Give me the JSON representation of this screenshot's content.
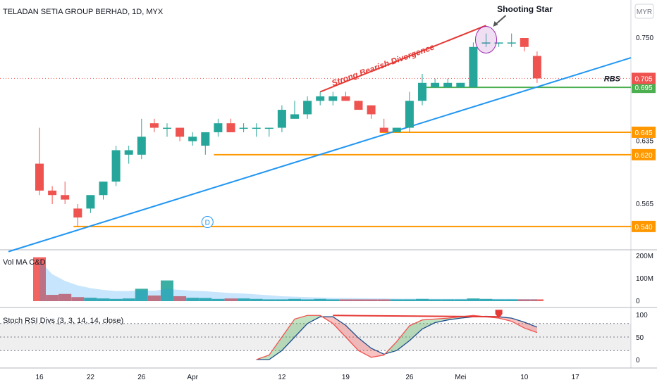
{
  "title": "TELADAN SETIA GROUP BERHAD, 1D, MYX",
  "currency_badge": "MYR",
  "colors": {
    "up": "#26a69a",
    "down": "#ef5350",
    "trendline": "#2196f3",
    "level": "#ff9800",
    "rbs": "#4caf50",
    "divergence": "#e53935",
    "rsi_k": "#ef5350",
    "rsi_d": "#1e4e8c"
  },
  "chart_data": [
    {
      "type": "candlestick",
      "title": "TELADAN SETIA GROUP BERHAD, 1D, MYX",
      "ylim": [
        0.515,
        0.775
      ],
      "y_ticks": [
        "0.750",
        "0.565"
      ],
      "x_ticks": [
        {
          "label": "16",
          "bar": 0
        },
        {
          "label": "22",
          "bar": 4
        },
        {
          "label": "26",
          "bar": 8
        },
        {
          "label": "Apr",
          "bar": 12
        },
        {
          "label": "12",
          "bar": 19
        },
        {
          "label": "19",
          "bar": 24
        },
        {
          "label": "26",
          "bar": 29
        },
        {
          "label": "Mei",
          "bar": 33
        },
        {
          "label": "10",
          "bar": 38
        },
        {
          "label": "17",
          "bar": 42
        }
      ],
      "candles": [
        {
          "o": 0.61,
          "h": 0.65,
          "c": 0.58,
          "l": 0.575
        },
        {
          "o": 0.58,
          "h": 0.585,
          "c": 0.575,
          "l": 0.565
        },
        {
          "o": 0.575,
          "h": 0.59,
          "c": 0.57,
          "l": 0.565
        },
        {
          "o": 0.56,
          "h": 0.565,
          "c": 0.55,
          "l": 0.54
        },
        {
          "o": 0.56,
          "h": 0.575,
          "c": 0.575,
          "l": 0.555
        },
        {
          "o": 0.575,
          "h": 0.59,
          "c": 0.59,
          "l": 0.57
        },
        {
          "o": 0.59,
          "h": 0.63,
          "c": 0.625,
          "l": 0.585
        },
        {
          "o": 0.62,
          "h": 0.63,
          "c": 0.625,
          "l": 0.61
        },
        {
          "o": 0.62,
          "h": 0.66,
          "c": 0.64,
          "l": 0.615
        },
        {
          "o": 0.655,
          "h": 0.66,
          "c": 0.65,
          "l": 0.645
        },
        {
          "o": 0.65,
          "h": 0.655,
          "c": 0.65,
          "l": 0.64
        },
        {
          "o": 0.65,
          "h": 0.65,
          "c": 0.64,
          "l": 0.635
        },
        {
          "o": 0.635,
          "h": 0.645,
          "c": 0.64,
          "l": 0.63
        },
        {
          "o": 0.63,
          "h": 0.645,
          "c": 0.645,
          "l": 0.62
        },
        {
          "o": 0.645,
          "h": 0.66,
          "c": 0.655,
          "l": 0.64
        },
        {
          "o": 0.655,
          "h": 0.66,
          "c": 0.645,
          "l": 0.645
        },
        {
          "o": 0.65,
          "h": 0.655,
          "c": 0.65,
          "l": 0.645
        },
        {
          "o": 0.65,
          "h": 0.655,
          "c": 0.65,
          "l": 0.64
        },
        {
          "o": 0.65,
          "h": 0.65,
          "c": 0.65,
          "l": 0.64
        },
        {
          "o": 0.65,
          "h": 0.675,
          "c": 0.67,
          "l": 0.645
        },
        {
          "o": 0.66,
          "h": 0.68,
          "c": 0.665,
          "l": 0.66
        },
        {
          "o": 0.665,
          "h": 0.685,
          "c": 0.68,
          "l": 0.66
        },
        {
          "o": 0.68,
          "h": 0.69,
          "c": 0.685,
          "l": 0.675
        },
        {
          "o": 0.68,
          "h": 0.69,
          "c": 0.685,
          "l": 0.675
        },
        {
          "o": 0.685,
          "h": 0.69,
          "c": 0.68,
          "l": 0.68
        },
        {
          "o": 0.68,
          "h": 0.68,
          "c": 0.67,
          "l": 0.67
        },
        {
          "o": 0.675,
          "h": 0.675,
          "c": 0.665,
          "l": 0.66
        },
        {
          "o": 0.65,
          "h": 0.66,
          "c": 0.645,
          "l": 0.645
        },
        {
          "o": 0.645,
          "h": 0.65,
          "c": 0.65,
          "l": 0.645
        },
        {
          "o": 0.65,
          "h": 0.69,
          "c": 0.68,
          "l": 0.645
        },
        {
          "o": 0.68,
          "h": 0.71,
          "c": 0.7,
          "l": 0.675
        },
        {
          "o": 0.695,
          "h": 0.705,
          "c": 0.7,
          "l": 0.695
        },
        {
          "o": 0.695,
          "h": 0.705,
          "c": 0.7,
          "l": 0.695
        },
        {
          "o": 0.695,
          "h": 0.7,
          "c": 0.7,
          "l": 0.695
        },
        {
          "o": 0.695,
          "h": 0.745,
          "c": 0.74,
          "l": 0.695
        },
        {
          "o": 0.745,
          "h": 0.755,
          "c": 0.745,
          "l": 0.74
        },
        {
          "o": 0.745,
          "h": 0.745,
          "c": 0.745,
          "l": 0.74
        },
        {
          "o": 0.745,
          "h": 0.755,
          "c": 0.745,
          "l": 0.74
        },
        {
          "o": 0.75,
          "h": 0.75,
          "c": 0.74,
          "l": 0.735
        },
        {
          "o": 0.73,
          "h": 0.735,
          "c": 0.705,
          "l": 0.7
        }
      ],
      "levels": [
        {
          "value": 0.645,
          "label": "0.645",
          "color": "#ff9800"
        },
        {
          "value": 0.62,
          "label": "0.620",
          "color": "#ff9800"
        },
        {
          "value": 0.54,
          "label": "0.540",
          "color": "#ff9800"
        },
        {
          "value": 0.695,
          "label": "0.695",
          "color": "#4caf50"
        }
      ],
      "last_price": {
        "value": 0.705,
        "label": "0.705",
        "color": "#ef5350"
      },
      "annotations": {
        "rbs": "RBS",
        "divergence": "Strong Bearish Divergence",
        "shooting_star": "Shooting Star",
        "marker": "D",
        "partial_tick": "0.635"
      }
    },
    {
      "type": "bar",
      "title": "Vol MA C&D",
      "ylim": [
        0,
        210
      ],
      "y_ticks": [
        "200M",
        "100M",
        "0"
      ],
      "values": [
        195,
        28,
        32,
        18,
        15,
        12,
        10,
        12,
        55,
        25,
        92,
        22,
        15,
        14,
        10,
        12,
        12,
        10,
        8,
        8,
        10,
        8,
        10,
        8,
        8,
        8,
        8,
        8,
        8,
        8,
        10,
        8,
        8,
        8,
        12,
        10,
        8,
        8,
        8,
        8
      ],
      "ma": [
        180,
        120,
        90,
        70,
        58,
        50,
        45,
        45,
        48,
        46,
        54,
        50,
        46,
        44,
        40,
        36,
        34,
        30,
        26,
        22,
        20,
        18,
        16,
        14,
        14,
        13,
        12,
        12,
        11,
        11,
        11,
        10,
        10,
        10,
        10,
        10,
        10,
        10,
        9,
        9
      ]
    },
    {
      "type": "line",
      "title": "Stoch RSI Divs (3, 3, 14, 14, close)",
      "ylim": [
        0,
        100
      ],
      "y_ticks": [
        "100",
        "50",
        "0"
      ],
      "band": [
        20,
        80
      ],
      "series": [
        {
          "key": "k",
          "values": [
            null,
            null,
            null,
            null,
            null,
            null,
            null,
            null,
            null,
            null,
            null,
            null,
            null,
            null,
            null,
            null,
            null,
            0,
            10,
            50,
            90,
            98,
            98,
            80,
            50,
            20,
            5,
            10,
            40,
            75,
            88,
            90,
            92,
            95,
            98,
            95,
            92,
            85,
            70,
            60
          ]
        },
        {
          "key": "d",
          "values": [
            null,
            null,
            null,
            null,
            null,
            null,
            null,
            null,
            null,
            null,
            null,
            null,
            null,
            null,
            null,
            null,
            null,
            0,
            0,
            20,
            50,
            80,
            95,
            95,
            76,
            48,
            25,
            12,
            20,
            42,
            68,
            82,
            88,
            92,
            95,
            96,
            95,
            92,
            83,
            72
          ]
        }
      ]
    }
  ]
}
